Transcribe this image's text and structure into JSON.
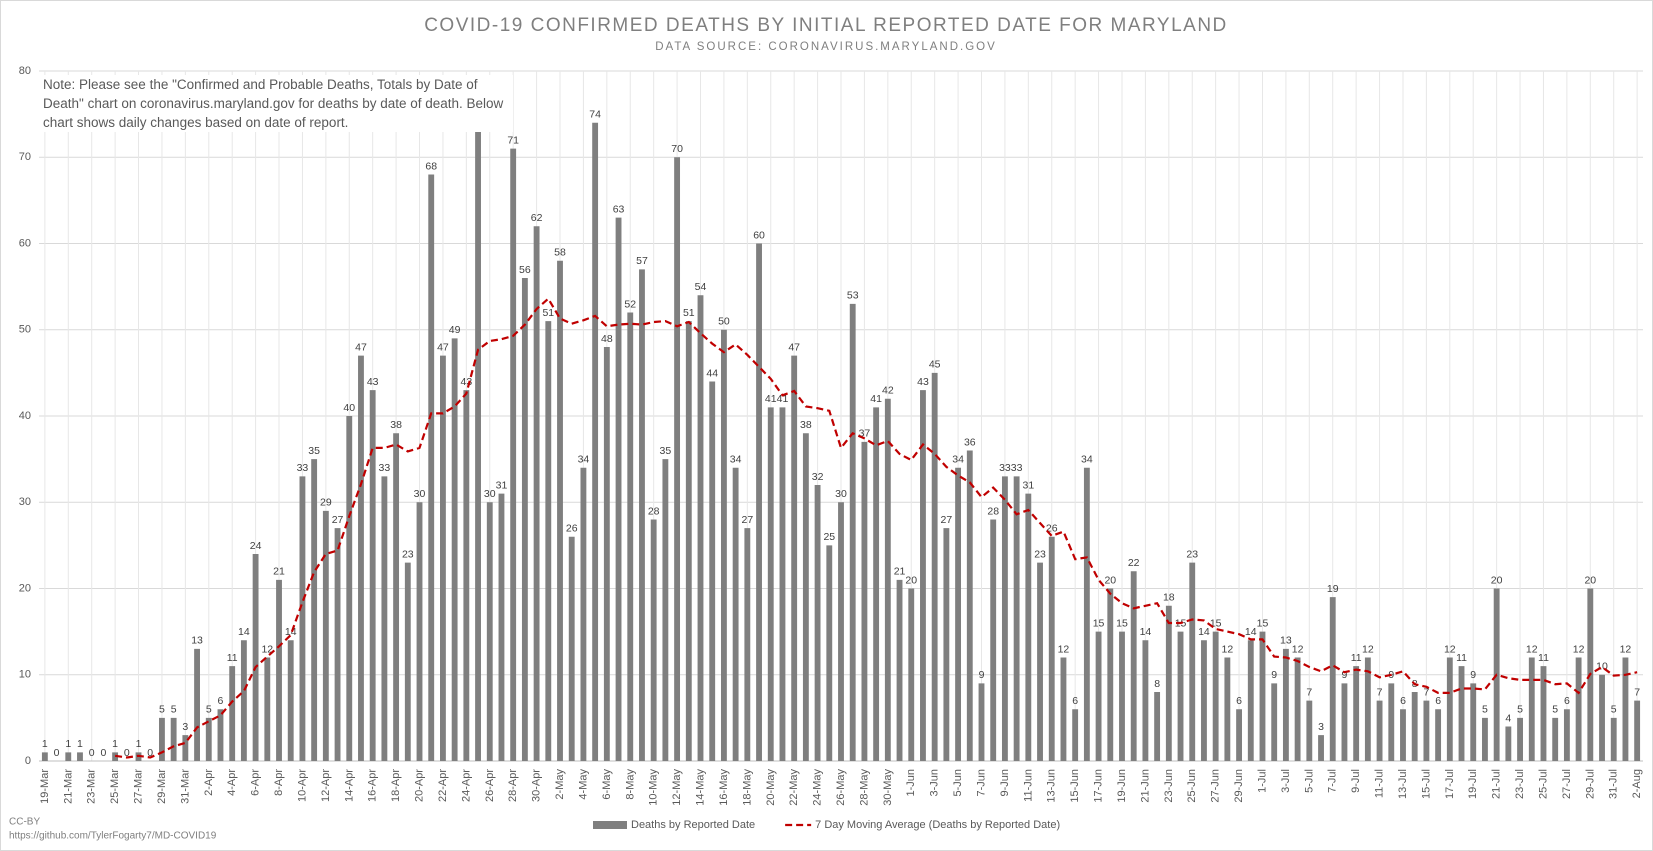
{
  "chart_data": {
    "type": "bar",
    "title": "COVID-19 CONFIRMED DEATHS BY INITIAL REPORTED DATE FOR MARYLAND",
    "subtitle": "DATA SOURCE: CORONAVIRUS.MARYLAND.GOV",
    "annotation": "Note: Please see the \"Confirmed and Probable Deaths, Totals by Date of Death\" chart on coronavirus.maryland.gov for deaths by date of death. Below chart shows daily changes based on date of report.",
    "credit": "CC-BY",
    "source_url": "https://github.com/TylerFogarty7/MD-COVID19",
    "categories": [
      "19-Mar",
      null,
      "21-Mar",
      null,
      "23-Mar",
      null,
      "25-Mar",
      null,
      "27-Mar",
      null,
      "29-Mar",
      null,
      "31-Mar",
      null,
      "2-Apr",
      null,
      "4-Apr",
      null,
      "6-Apr",
      null,
      "8-Apr",
      null,
      "10-Apr",
      null,
      "12-Apr",
      null,
      "14-Apr",
      null,
      "16-Apr",
      null,
      "18-Apr",
      null,
      "20-Apr",
      null,
      "22-Apr",
      null,
      "24-Apr",
      null,
      "26-Apr",
      null,
      "28-Apr",
      null,
      "30-Apr",
      null,
      "2-May",
      null,
      "4-May",
      null,
      "6-May",
      null,
      "8-May",
      null,
      "10-May",
      null,
      "12-May",
      null,
      "14-May",
      null,
      "16-May",
      null,
      "18-May",
      null,
      "20-May",
      null,
      "22-May",
      null,
      "24-May",
      null,
      "26-May",
      null,
      "28-May",
      null,
      "30-May",
      null,
      "1-Jun",
      null,
      "3-Jun",
      null,
      "5-Jun",
      null,
      "7-Jun",
      null,
      "9-Jun",
      null,
      "11-Jun",
      null,
      "13-Jun",
      null,
      "15-Jun",
      null,
      "17-Jun",
      null,
      "19-Jun",
      null,
      "21-Jun",
      null,
      "23-Jun",
      null,
      "25-Jun",
      null,
      "27-Jun",
      null,
      "29-Jun",
      null,
      "1-Jul",
      null,
      "3-Jul",
      null,
      "5-Jul",
      null,
      "7-Jul",
      null,
      "9-Jul",
      null,
      "11-Jul",
      null,
      "13-Jul",
      null,
      "15-Jul",
      null,
      "17-Jul",
      null,
      "19-Jul",
      null,
      "21-Jul",
      null,
      "23-Jul",
      null,
      "25-Jul",
      null,
      "27-Jul",
      null,
      "29-Jul",
      null,
      "31-Jul",
      null,
      "2-Aug"
    ],
    "series": [
      {
        "name": "Deaths by Reported Date",
        "color": "#7f7f7f",
        "type": "bar",
        "values": [
          1,
          0,
          1,
          1,
          0,
          0,
          1,
          0,
          1,
          0,
          5,
          5,
          3,
          13,
          5,
          6,
          11,
          14,
          24,
          12,
          21,
          14,
          33,
          35,
          29,
          27,
          40,
          47,
          43,
          33,
          38,
          23,
          30,
          68,
          47,
          49,
          43,
          74,
          30,
          31,
          71,
          56,
          62,
          51,
          58,
          26,
          34,
          74,
          48,
          63,
          52,
          57,
          28,
          35,
          70,
          51,
          54,
          44,
          50,
          34,
          27,
          60,
          41,
          41,
          47,
          38,
          32,
          25,
          30,
          53,
          37,
          41,
          42,
          21,
          20,
          43,
          45,
          27,
          34,
          36,
          9,
          28,
          33,
          33,
          31,
          23,
          26,
          12,
          6,
          34,
          15,
          20,
          15,
          22,
          14,
          8,
          18,
          15,
          23,
          14,
          15,
          12,
          6,
          14,
          15,
          9,
          13,
          12,
          7,
          3,
          19,
          9,
          11,
          12,
          7,
          9,
          6,
          8,
          7,
          6,
          12,
          11,
          9,
          5,
          20,
          4,
          5,
          12,
          11,
          5,
          6,
          12,
          20,
          10,
          5,
          12,
          7
        ]
      },
      {
        "name": "7 Day Moving Average (Deaths by Reported Date)",
        "color": "#c00000",
        "type": "line",
        "dashed": true,
        "values": [
          null,
          null,
          null,
          null,
          null,
          null,
          0.6,
          0.4,
          0.6,
          0.4,
          1.0,
          1.7,
          2.1,
          3.9,
          4.6,
          5.3,
          6.9,
          8.1,
          10.9,
          12.1,
          13.3,
          14.6,
          18.4,
          21.9,
          24.0,
          24.4,
          28.4,
          32.1,
          36.3,
          36.3,
          36.7,
          35.9,
          36.3,
          40.3,
          40.3,
          41.1,
          42.6,
          47.7,
          48.7,
          48.9,
          49.3,
          50.6,
          52.4,
          53.6,
          51.3,
          50.7,
          51.1,
          51.6,
          50.4,
          50.6,
          50.7,
          50.6,
          50.9,
          51.0,
          50.4,
          50.9,
          49.6,
          48.4,
          47.4,
          48.3,
          47.1,
          45.7,
          44.3,
          42.4,
          42.9,
          41.1,
          40.9,
          40.6,
          36.3,
          38.0,
          37.4,
          36.6,
          37.1,
          35.6,
          34.9,
          36.7,
          35.6,
          34.1,
          33.1,
          32.3,
          30.6,
          31.7,
          30.3,
          28.6,
          29.1,
          27.6,
          26.1,
          26.6,
          23.4,
          23.6,
          21.0,
          19.4,
          18.3,
          17.7,
          18.0,
          18.3,
          16.0,
          16.0,
          16.4,
          16.3,
          15.3,
          15.0,
          14.7,
          14.1,
          14.1,
          12.1,
          12.0,
          11.6,
          10.9,
          10.4,
          11.1,
          10.3,
          10.6,
          10.4,
          9.7,
          10.0,
          10.4,
          8.9,
          8.6,
          7.9,
          7.9,
          8.4,
          8.4,
          8.3,
          10.0,
          9.6,
          9.4,
          9.4,
          9.4,
          8.9,
          9.0,
          7.9,
          10.1,
          10.9,
          9.9,
          10.0,
          10.3
        ]
      }
    ],
    "ylim": [
      0,
      80
    ],
    "yticks": [
      0,
      10,
      20,
      30,
      40,
      50,
      60,
      70,
      80
    ],
    "grid": true,
    "legend": "bottom"
  }
}
